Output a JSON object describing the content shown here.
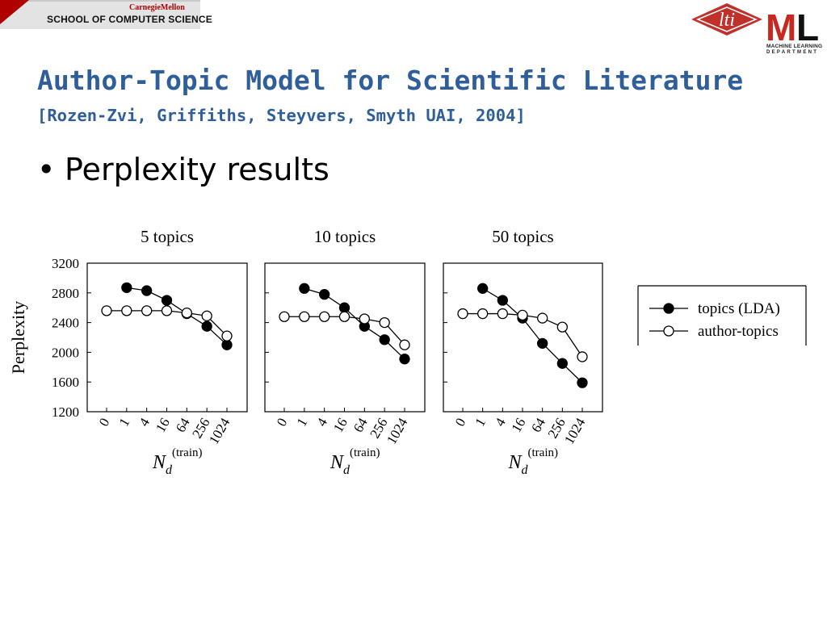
{
  "header": {
    "institution_top": "CarnegieMellon",
    "school": "SCHOOL OF COMPUTER SCIENCE",
    "lti_logo": "lti",
    "ml_logo": "ML",
    "ml_sub1": "MACHINE LEARNING",
    "ml_sub2": "DEPARTMENT"
  },
  "slide": {
    "title": "Author-Topic Model for Scientific Literature",
    "citation": "[Rozen-Zvi, Griffiths, Steyvers, Smyth UAI, 2004]",
    "bullet": "Perplexity results"
  },
  "colors": {
    "title": "#2f5f9a",
    "header_red": "#b00000",
    "lti_red": "#c0312b",
    "ml_red": "#c8281e"
  },
  "chart_data": [
    {
      "type": "line",
      "title": "5 topics",
      "xlabel": "N_d(train)",
      "ylabel": "Perplexity",
      "x_ticks": [
        "0",
        "1",
        "4",
        "16",
        "64",
        "256",
        "1024"
      ],
      "ylim": [
        1200,
        3200
      ],
      "y_ticks": [
        1200,
        1600,
        2000,
        2400,
        2800,
        3200
      ],
      "grid": false,
      "series": [
        {
          "name": "topics (LDA)",
          "marker": "filled",
          "x": [
            "1",
            "4",
            "16",
            "64",
            "256",
            "1024"
          ],
          "values": [
            2870,
            2830,
            2700,
            2520,
            2350,
            2100
          ]
        },
        {
          "name": "author-topics",
          "marker": "open",
          "x": [
            "0",
            "1",
            "4",
            "16",
            "64",
            "256",
            "1024"
          ],
          "values": [
            2560,
            2560,
            2560,
            2560,
            2530,
            2490,
            2220
          ]
        }
      ]
    },
    {
      "type": "line",
      "title": "10 topics",
      "xlabel": "N_d(train)",
      "x_ticks": [
        "0",
        "1",
        "4",
        "16",
        "64",
        "256",
        "1024"
      ],
      "ylim": [
        1200,
        3200
      ],
      "grid": false,
      "series": [
        {
          "name": "topics (LDA)",
          "marker": "filled",
          "x": [
            "1",
            "4",
            "16",
            "64",
            "256",
            "1024"
          ],
          "values": [
            2860,
            2780,
            2600,
            2350,
            2170,
            1910
          ]
        },
        {
          "name": "author-topics",
          "marker": "open",
          "x": [
            "0",
            "1",
            "4",
            "16",
            "64",
            "256",
            "1024"
          ],
          "values": [
            2480,
            2480,
            2480,
            2480,
            2450,
            2400,
            2100
          ]
        }
      ]
    },
    {
      "type": "line",
      "title": "50 topics",
      "xlabel": "N_d(train)",
      "x_ticks": [
        "0",
        "1",
        "4",
        "16",
        "64",
        "256",
        "1024"
      ],
      "ylim": [
        1200,
        3200
      ],
      "grid": false,
      "series": [
        {
          "name": "topics (LDA)",
          "marker": "filled",
          "x": [
            "1",
            "4",
            "16",
            "64",
            "256",
            "1024"
          ],
          "values": [
            2860,
            2700,
            2460,
            2120,
            1850,
            1590
          ]
        },
        {
          "name": "author-topics",
          "marker": "open",
          "x": [
            "0",
            "1",
            "4",
            "16",
            "64",
            "256",
            "1024"
          ],
          "values": [
            2520,
            2520,
            2520,
            2500,
            2460,
            2340,
            1940
          ]
        }
      ]
    }
  ],
  "legend": {
    "entries": [
      {
        "label": "topics (LDA)",
        "marker": "filled"
      },
      {
        "label": "author-topics",
        "marker": "open"
      }
    ],
    "placement": "right"
  }
}
